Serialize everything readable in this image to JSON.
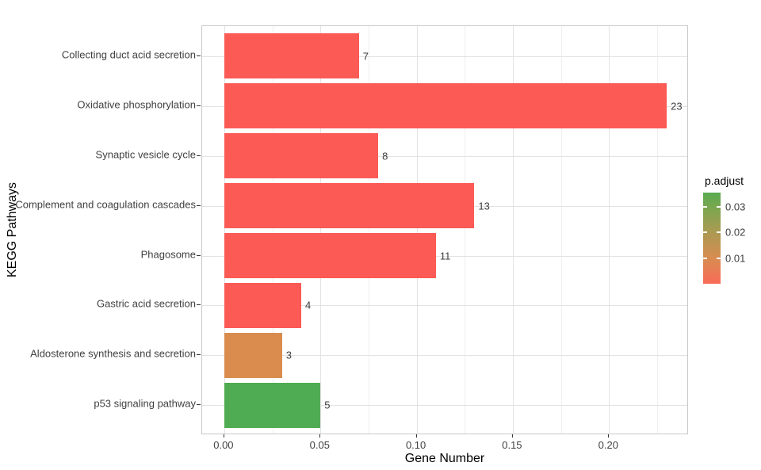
{
  "chart_data": {
    "type": "bar",
    "orientation": "horizontal",
    "title": "",
    "xlabel": "Gene Number",
    "ylabel": "KEGG Pathways",
    "categories": [
      "Collecting duct acid secretion",
      "Oxidative phosphorylation",
      "Synaptic vesicle cycle",
      "Complement and coagulation cascades",
      "Phagosome",
      "Gastric acid secretion",
      "Aldosterone synthesis and secretion",
      "p53 signaling pathway"
    ],
    "values": [
      0.07,
      0.23,
      0.08,
      0.13,
      0.11,
      0.04,
      0.03,
      0.05
    ],
    "gene_counts": [
      7,
      23,
      8,
      13,
      11,
      4,
      3,
      5
    ],
    "bar_labels": [
      "7",
      "23",
      "8",
      "13",
      "11",
      "4",
      "3",
      "5"
    ],
    "bar_colors": [
      "#FB5A55",
      "#FB5A55",
      "#FB5A55",
      "#FB5A55",
      "#FB5A55",
      "#FB5A55",
      "#D98C4E",
      "#50AC52"
    ],
    "xlim": [
      -0.0115,
      0.2415
    ],
    "x_ticks": [
      0,
      0.05,
      0.1,
      0.15,
      0.2
    ],
    "x_tick_labels": [
      "0.00",
      "0.05",
      "0.10",
      "0.15",
      "0.20"
    ],
    "x_minor_ticks": [
      0.025,
      0.075,
      0.125,
      0.175,
      0.225
    ],
    "grid": true,
    "legend": {
      "title": "p.adjust",
      "position": "right",
      "domain": [
        0,
        0.0355
      ],
      "tick_values": [
        0.03,
        0.02,
        0.01
      ],
      "tick_labels": [
        "0.03",
        "0.02",
        "0.01"
      ],
      "gradient_top_to_bottom": [
        {
          "color": "#58AB50",
          "pos": 0
        },
        {
          "color": "#7AA74F",
          "pos": 16
        },
        {
          "color": "#AA9A52",
          "pos": 43
        },
        {
          "color": "#D88C51",
          "pos": 72
        },
        {
          "color": "#F96B58",
          "pos": 100
        }
      ]
    }
  }
}
